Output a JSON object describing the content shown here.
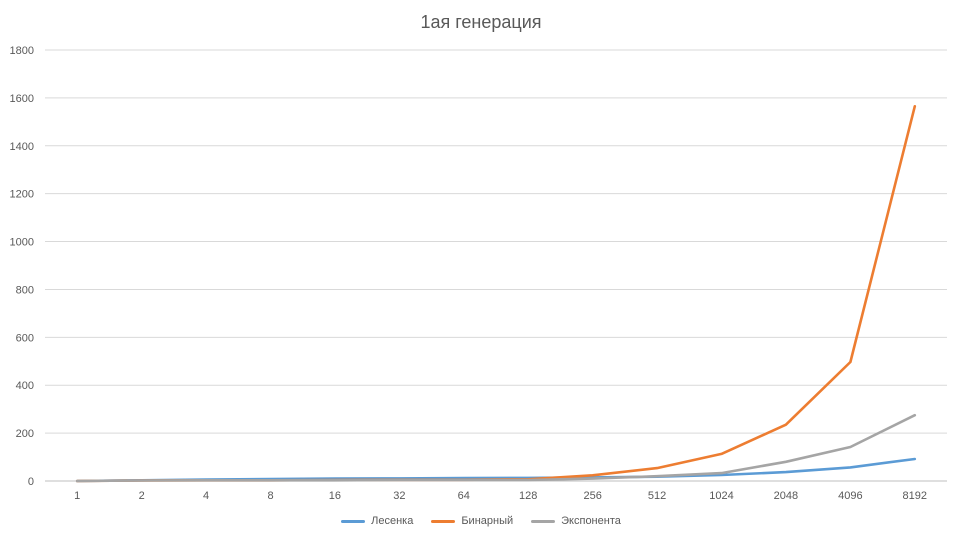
{
  "chart_data": {
    "type": "line",
    "title": "1ая генерация",
    "xlabel": "",
    "ylabel": "",
    "categories": [
      "1",
      "2",
      "4",
      "8",
      "16",
      "32",
      "64",
      "128",
      "256",
      "512",
      "1024",
      "2048",
      "4096",
      "8192"
    ],
    "ylim": [
      0,
      1800
    ],
    "yticks": [
      0,
      200,
      400,
      600,
      800,
      1000,
      1200,
      1400,
      1600,
      1800
    ],
    "grid": true,
    "legend_position": "bottom",
    "series": [
      {
        "name": "Лесенка",
        "color": "#5b9bd5",
        "values": [
          0,
          3,
          6,
          8,
          10,
          11,
          12,
          13,
          15,
          18,
          25,
          37,
          57,
          92
        ]
      },
      {
        "name": "Бинарный",
        "color": "#ed7d31",
        "values": [
          0,
          2,
          3,
          3,
          4,
          5,
          5,
          7,
          24,
          54,
          113,
          235,
          497,
          1565
        ]
      },
      {
        "name": "Экспонента",
        "color": "#a5a5a5",
        "values": [
          0,
          2,
          3,
          3,
          3,
          4,
          4,
          4,
          10,
          20,
          33,
          80,
          142,
          275
        ]
      }
    ]
  }
}
